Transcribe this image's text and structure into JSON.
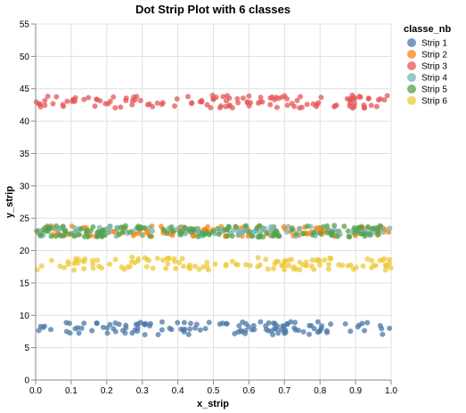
{
  "chart_data": {
    "type": "scatter",
    "title": "Dot Strip Plot with 6 classes",
    "xlabel": "x_strip",
    "ylabel": "y_strip",
    "xlim": [
      0,
      1
    ],
    "ylim": [
      0,
      55
    ],
    "x_ticks": [
      "0.0",
      "0.1",
      "0.2",
      "0.3",
      "0.4",
      "0.5",
      "0.6",
      "0.7",
      "0.8",
      "0.9",
      "1.0"
    ],
    "y_ticks": [
      "0",
      "5",
      "10",
      "15",
      "20",
      "25",
      "30",
      "35",
      "40",
      "45",
      "50",
      "55"
    ],
    "grid": true,
    "legend": {
      "title": "classe_nb",
      "position": "top-right"
    },
    "series": [
      {
        "name": "Strip 1",
        "color": "#4c78a8",
        "y_center": 8.0,
        "y_spread": 1.0,
        "count": 130,
        "x_range": [
          0,
          1
        ]
      },
      {
        "name": "Strip 2",
        "color": "#f58518",
        "y_center": 23.0,
        "y_spread": 0.8,
        "count": 130,
        "x_range": [
          0,
          1
        ]
      },
      {
        "name": "Strip 3",
        "color": "#e45756",
        "y_center": 43.0,
        "y_spread": 1.0,
        "count": 130,
        "x_range": [
          0,
          1
        ]
      },
      {
        "name": "Strip 4",
        "color": "#72b7b2",
        "y_center": 23.0,
        "y_spread": 0.8,
        "count": 130,
        "x_range": [
          0,
          1
        ]
      },
      {
        "name": "Strip 5",
        "color": "#54a24b",
        "y_center": 23.0,
        "y_spread": 0.9,
        "count": 130,
        "x_range": [
          0,
          1
        ]
      },
      {
        "name": "Strip 6",
        "color": "#eeca3b",
        "y_center": 18.0,
        "y_spread": 1.0,
        "count": 130,
        "x_range": [
          0,
          1
        ]
      }
    ]
  }
}
